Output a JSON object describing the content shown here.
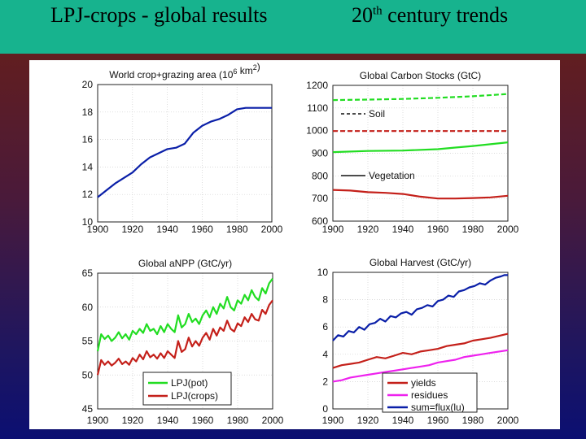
{
  "header": {
    "left_title": "LPJ-crops  -  global results",
    "right_title_prefix": "20",
    "right_title_sup": "th",
    "right_title_suffix": " century trends"
  },
  "colors": {
    "title_bar": "#17b38e",
    "blue": "#0a1fa8",
    "green": "#22dd22",
    "red": "#c4201a",
    "magenta": "#ee22ee",
    "darkred": "#c4201a"
  },
  "chart_data": [
    {
      "id": "area",
      "type": "line",
      "title": "World crop+grazing area (10",
      "title_sup1": "6",
      "title_mid": " km",
      "title_sup2": "2",
      "title_end": ")",
      "xlim": [
        1900,
        2000
      ],
      "ylim": [
        10,
        20
      ],
      "xticks": [
        1900,
        1920,
        1940,
        1960,
        1980,
        2000
      ],
      "yticks": [
        10,
        12,
        14,
        16,
        18,
        20
      ],
      "grid": true,
      "series": [
        {
          "color": "#0a1fa8",
          "style": "solid",
          "x": [
            1900,
            1905,
            1910,
            1915,
            1920,
            1925,
            1930,
            1935,
            1940,
            1945,
            1950,
            1955,
            1960,
            1965,
            1970,
            1975,
            1980,
            1985,
            1990,
            1995,
            2000
          ],
          "y": [
            11.8,
            12.3,
            12.8,
            13.2,
            13.6,
            14.2,
            14.7,
            15.0,
            15.3,
            15.4,
            15.7,
            16.5,
            17.0,
            17.3,
            17.5,
            17.8,
            18.2,
            18.3,
            18.3,
            18.3,
            18.3
          ]
        }
      ]
    },
    {
      "id": "carbon",
      "type": "line",
      "title": "Global Carbon Stocks (GtC)",
      "xlim": [
        1900,
        2000
      ],
      "ylim": [
        600,
        1200
      ],
      "xticks": [
        1900,
        1920,
        1940,
        1960,
        1980,
        2000
      ],
      "yticks": [
        600,
        700,
        800,
        900,
        1000,
        1100,
        1200
      ],
      "grid": true,
      "series": [
        {
          "name": "Soil",
          "color": "#22dd22",
          "style": "dashed",
          "x": [
            1900,
            1920,
            1940,
            1960,
            1980,
            2000
          ],
          "y": [
            1135,
            1137,
            1140,
            1145,
            1152,
            1162
          ]
        },
        {
          "color": "#c4201a",
          "style": "dashed",
          "x": [
            1900,
            1920,
            1940,
            1960,
            1980,
            2000
          ],
          "y": [
            998,
            998,
            998,
            998,
            998,
            998
          ]
        },
        {
          "color": "#22dd22",
          "style": "solid",
          "x": [
            1900,
            1920,
            1940,
            1960,
            1970,
            1980,
            1990,
            2000
          ],
          "y": [
            905,
            910,
            912,
            918,
            925,
            932,
            940,
            948
          ]
        },
        {
          "name": "Vegetation",
          "color": "#c4201a",
          "style": "solid",
          "x": [
            1900,
            1910,
            1920,
            1930,
            1940,
            1950,
            1960,
            1970,
            1980,
            1990,
            2000
          ],
          "y": [
            738,
            735,
            728,
            725,
            720,
            708,
            700,
            700,
            702,
            705,
            712
          ]
        }
      ],
      "legend": [
        {
          "label": "Soil",
          "style": "dashed"
        },
        {
          "label": "Vegetation",
          "style": "solid"
        }
      ]
    },
    {
      "id": "anpp",
      "type": "line",
      "title": "Global aNPP (GtC/yr)",
      "xlim": [
        1900,
        2000
      ],
      "ylim": [
        45,
        65
      ],
      "xticks": [
        1900,
        1920,
        1940,
        1960,
        1980,
        2000
      ],
      "yticks": [
        45,
        50,
        55,
        60,
        65
      ],
      "grid": true,
      "series": [
        {
          "name": "LPJ(pot)",
          "color": "#22dd22",
          "style": "solid",
          "x": [
            1900,
            1902,
            1904,
            1906,
            1908,
            1910,
            1912,
            1914,
            1916,
            1918,
            1920,
            1922,
            1924,
            1926,
            1928,
            1930,
            1932,
            1934,
            1936,
            1938,
            1940,
            1942,
            1944,
            1946,
            1948,
            1950,
            1952,
            1954,
            1956,
            1958,
            1960,
            1962,
            1964,
            1966,
            1968,
            1970,
            1972,
            1974,
            1976,
            1978,
            1980,
            1982,
            1984,
            1986,
            1988,
            1990,
            1992,
            1994,
            1996,
            1998,
            2000
          ],
          "y": [
            53.5,
            56.0,
            55.3,
            55.8,
            55.0,
            55.5,
            56.3,
            55.4,
            56.0,
            55.2,
            56.5,
            56.0,
            56.8,
            56.2,
            57.5,
            56.5,
            56.8,
            56.0,
            57.2,
            56.3,
            57.5,
            56.8,
            56.3,
            58.8,
            57.0,
            57.5,
            59.0,
            57.8,
            58.3,
            57.5,
            58.8,
            59.5,
            58.5,
            60.0,
            59.0,
            60.5,
            59.8,
            61.5,
            60.0,
            59.5,
            61.0,
            60.5,
            61.8,
            61.0,
            62.5,
            61.5,
            61.0,
            62.8,
            62.0,
            63.5,
            64.2
          ]
        },
        {
          "name": "LPJ(crops)",
          "color": "#c4201a",
          "style": "solid",
          "x": [
            1900,
            1902,
            1904,
            1906,
            1908,
            1910,
            1912,
            1914,
            1916,
            1918,
            1920,
            1922,
            1924,
            1926,
            1928,
            1930,
            1932,
            1934,
            1936,
            1938,
            1940,
            1942,
            1944,
            1946,
            1948,
            1950,
            1952,
            1954,
            1956,
            1958,
            1960,
            1962,
            1964,
            1966,
            1968,
            1970,
            1972,
            1974,
            1976,
            1978,
            1980,
            1982,
            1984,
            1986,
            1988,
            1990,
            1992,
            1994,
            1996,
            1998,
            2000
          ],
          "y": [
            50.0,
            52.2,
            51.5,
            52.0,
            51.4,
            51.8,
            52.4,
            51.6,
            52.0,
            51.5,
            52.5,
            52.0,
            53.0,
            52.3,
            53.5,
            52.6,
            53.0,
            52.4,
            53.2,
            52.5,
            53.5,
            53.0,
            52.5,
            55.0,
            53.4,
            53.8,
            55.5,
            54.2,
            55.0,
            54.3,
            55.5,
            56.2,
            55.2,
            56.8,
            55.8,
            57.0,
            56.5,
            58.0,
            56.8,
            56.4,
            57.6,
            57.2,
            58.5,
            57.8,
            59.0,
            58.2,
            58.0,
            59.6,
            59.0,
            60.3,
            61.0
          ]
        }
      ],
      "legend": [
        {
          "label": "LPJ(pot)",
          "color": "#22dd22"
        },
        {
          "label": "LPJ(crops)",
          "color": "#c4201a"
        }
      ]
    },
    {
      "id": "harvest",
      "type": "line",
      "title": "Global Harvest (GtC/yr)",
      "xlim": [
        1900,
        2000
      ],
      "ylim": [
        0,
        10
      ],
      "xticks": [
        1900,
        1920,
        1940,
        1960,
        1980,
        2000
      ],
      "yticks": [
        0,
        2,
        4,
        6,
        8,
        10
      ],
      "grid": true,
      "series": [
        {
          "name": "yields",
          "color": "#c4201a",
          "style": "solid",
          "x": [
            1900,
            1905,
            1910,
            1915,
            1920,
            1925,
            1930,
            1935,
            1940,
            1945,
            1950,
            1955,
            1960,
            1965,
            1970,
            1975,
            1980,
            1985,
            1990,
            1995,
            2000
          ],
          "y": [
            3.0,
            3.2,
            3.3,
            3.4,
            3.6,
            3.8,
            3.7,
            3.9,
            4.1,
            4.0,
            4.2,
            4.3,
            4.4,
            4.6,
            4.7,
            4.8,
            5.0,
            5.1,
            5.2,
            5.35,
            5.5
          ]
        },
        {
          "name": "residues",
          "color": "#ee22ee",
          "style": "solid",
          "x": [
            1900,
            1905,
            1910,
            1915,
            1920,
            1925,
            1930,
            1935,
            1940,
            1945,
            1950,
            1955,
            1960,
            1965,
            1970,
            1975,
            1980,
            1985,
            1990,
            1995,
            2000
          ],
          "y": [
            2.0,
            2.1,
            2.3,
            2.4,
            2.5,
            2.6,
            2.7,
            2.8,
            2.9,
            3.0,
            3.1,
            3.2,
            3.4,
            3.5,
            3.6,
            3.8,
            3.9,
            4.0,
            4.1,
            4.2,
            4.3
          ]
        },
        {
          "name": "sum=flux(lu)",
          "color": "#0a1fa8",
          "style": "solid",
          "x": [
            1900,
            1903,
            1906,
            1909,
            1912,
            1915,
            1918,
            1921,
            1924,
            1927,
            1930,
            1933,
            1936,
            1939,
            1942,
            1945,
            1948,
            1951,
            1954,
            1957,
            1960,
            1963,
            1966,
            1969,
            1972,
            1975,
            1978,
            1981,
            1984,
            1987,
            1990,
            1993,
            1996,
            1998,
            2000
          ],
          "y": [
            5.0,
            5.4,
            5.3,
            5.7,
            5.6,
            6.0,
            5.8,
            6.2,
            6.3,
            6.6,
            6.4,
            6.8,
            6.7,
            7.0,
            7.1,
            6.9,
            7.3,
            7.4,
            7.6,
            7.5,
            7.9,
            8.0,
            8.3,
            8.2,
            8.6,
            8.7,
            8.9,
            9.0,
            9.2,
            9.1,
            9.4,
            9.6,
            9.7,
            9.8,
            9.8
          ]
        }
      ],
      "legend": [
        {
          "label": "yields",
          "color": "#c4201a"
        },
        {
          "label": "residues",
          "color": "#ee22ee"
        },
        {
          "label": "sum=flux(lu)",
          "color": "#0a1fa8"
        }
      ]
    }
  ]
}
